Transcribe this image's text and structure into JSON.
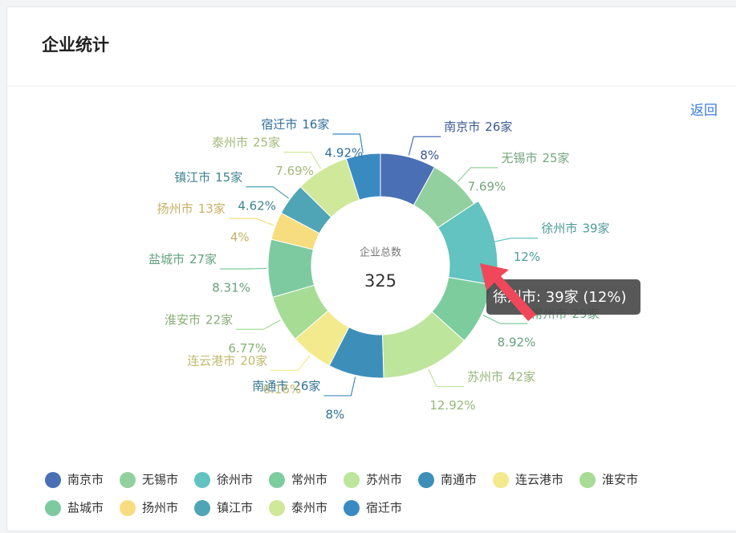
{
  "header": {
    "title": "企业统计",
    "back": "返回"
  },
  "chart_data": {
    "type": "pie",
    "center_label": "企业总数",
    "total": 325,
    "categories": [
      "南京市",
      "无锡市",
      "徐州市",
      "常州市",
      "苏州市",
      "南通市",
      "连云港市",
      "淮安市",
      "盐城市",
      "扬州市",
      "镇江市",
      "泰州市",
      "宿迁市"
    ],
    "values": [
      26,
      25,
      39,
      29,
      42,
      26,
      20,
      22,
      27,
      13,
      15,
      25,
      16
    ],
    "value_labels": [
      "26家",
      "25家",
      "39家",
      "29家",
      "42家",
      "26家",
      "20家",
      "22家",
      "27家",
      "13家",
      "15家",
      "25家",
      "16家"
    ],
    "percent_labels": [
      "8%",
      "7.69%",
      "12%",
      "8.92%",
      "12.92%",
      "8%",
      "6.16%",
      "6.77%",
      "8.31%",
      "4%",
      "4.62%",
      "7.69%",
      "4.92%"
    ],
    "colors": [
      "#4a6fb5",
      "#93d09f",
      "#62c3c0",
      "#7ccc9e",
      "#bde59c",
      "#3d8fb9",
      "#f3e98d",
      "#a7dc94",
      "#7dcaa0",
      "#f7dd7f",
      "#4fa4b5",
      "#cfe89a",
      "#3a8ac2"
    ],
    "tooltip": "徐州市: 39家 (12%)"
  }
}
